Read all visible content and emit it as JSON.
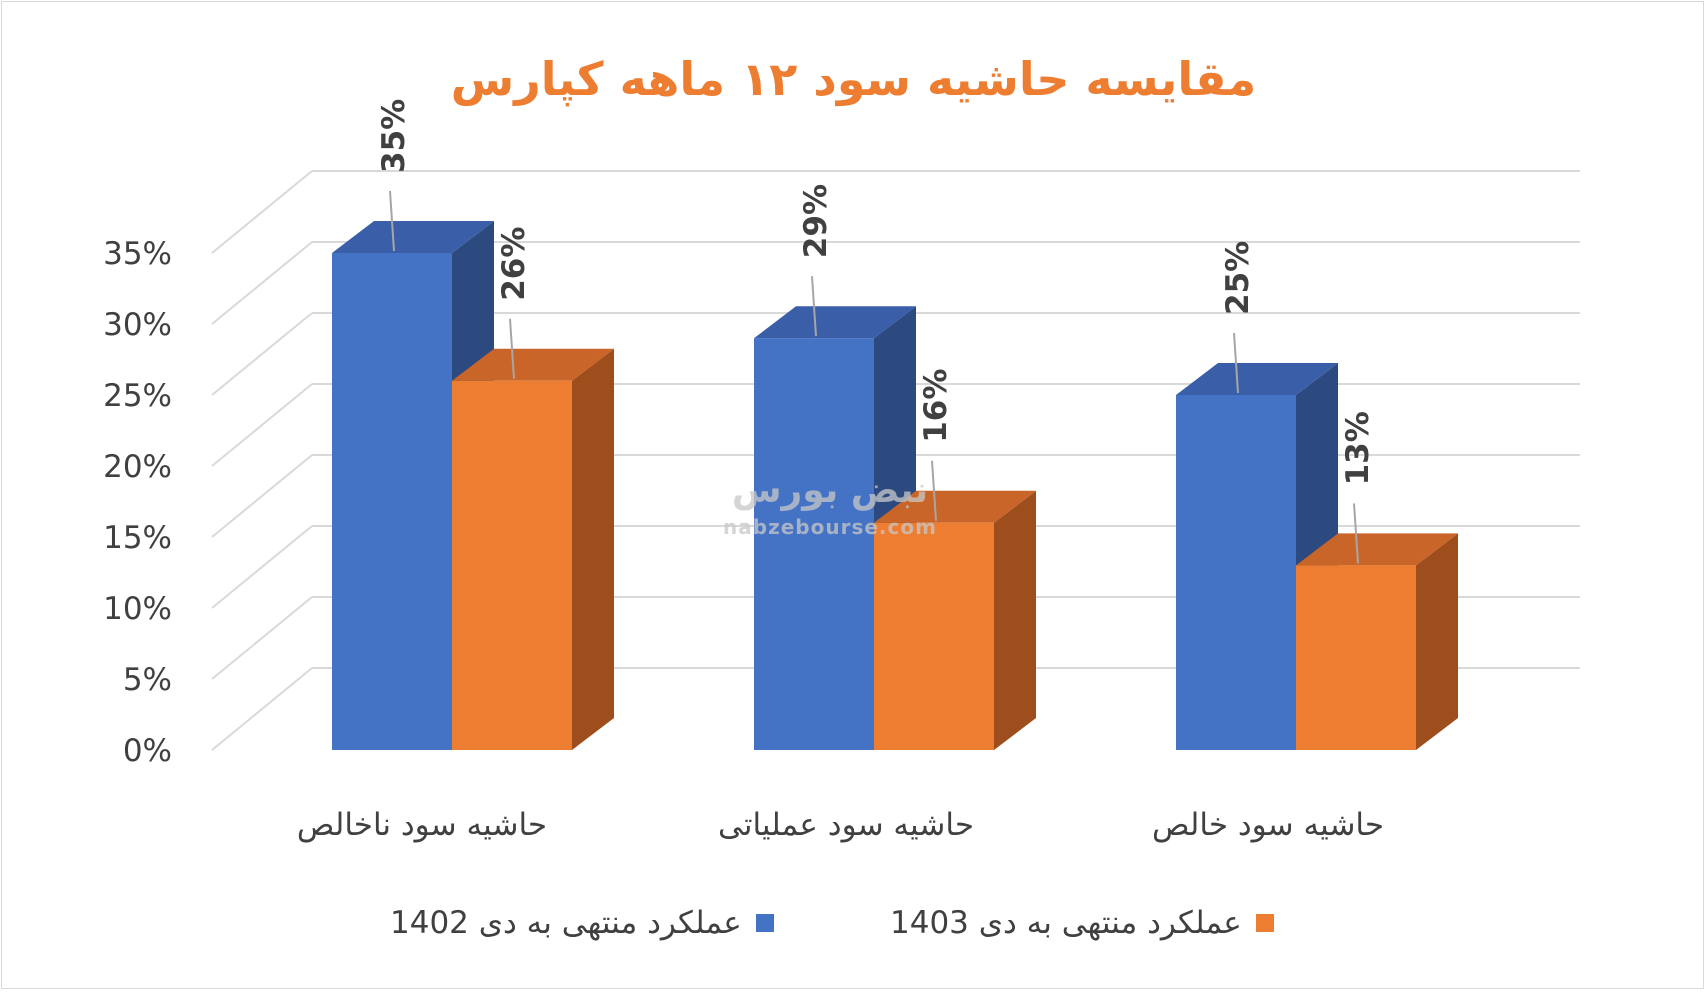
{
  "chart_data": {
    "type": "bar",
    "title": "مقایسه حاشیه سود ۱۲ ماهه کپارس",
    "categories": [
      "حاشیه سود ناخالص",
      "حاشیه سود عملیاتی",
      "حاشیه سود خالص"
    ],
    "series": [
      {
        "name": "عملکرد منتهی به دی 1402",
        "values": [
          35,
          29,
          25
        ],
        "color": "#4472c4",
        "data_labels": [
          "35%",
          "29%",
          "25%"
        ]
      },
      {
        "name": "عملکرد منتهی به دی 1403",
        "values": [
          26,
          16,
          13
        ],
        "color": "#ed7d31",
        "data_labels": [
          "26%",
          "16%",
          "13%"
        ]
      }
    ],
    "y_tick_labels": [
      "0%",
      "5%",
      "10%",
      "15%",
      "20%",
      "25%",
      "30%",
      "35%"
    ],
    "ylim": [
      0,
      35
    ],
    "ystep": 5,
    "grid": true,
    "three_d": true,
    "legend_position": "bottom",
    "xlabel": "",
    "ylabel": ""
  },
  "watermark": {
    "main": "نبض بورس",
    "sub": "nabzebourse.com"
  },
  "colors": {
    "title": "#ed7d31",
    "blue_front": "#4472c4",
    "blue_side": "#2d4a80",
    "orange_front": "#ed7d31",
    "orange_side": "#9e4e1c",
    "grid": "#d9d9d9",
    "text": "#404040"
  }
}
